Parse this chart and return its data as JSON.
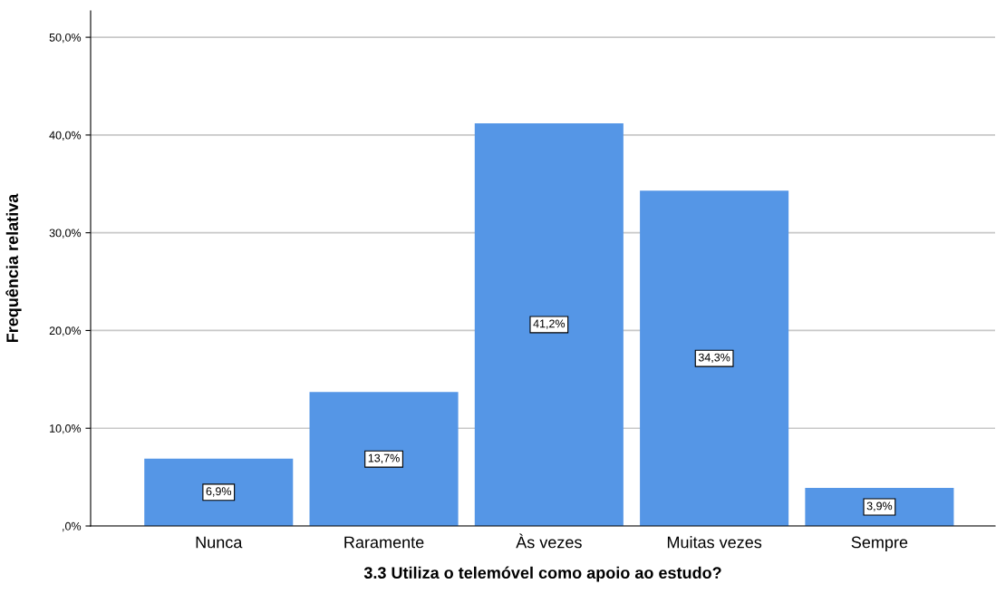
{
  "chart_data": {
    "type": "bar",
    "xlabel": "3.3 Utiliza o telemóvel como apoio ao estudo?",
    "ylabel": "Frequência relativa",
    "categories": [
      "Nunca",
      "Raramente",
      "Às vezes",
      "Muitas vezes",
      "Sempre"
    ],
    "values": [
      6.9,
      13.7,
      41.2,
      34.3,
      3.9
    ],
    "value_labels": [
      "6,9%",
      "13,7%",
      "41,2%",
      "34,3%",
      "3,9%"
    ],
    "color": "#5596e6",
    "ylim": [
      0,
      52.7
    ],
    "yticks": [
      {
        "value": 0,
        "label": ",0%"
      },
      {
        "value": 10,
        "label": "10,0%"
      },
      {
        "value": 20,
        "label": "20,0%"
      },
      {
        "value": 30,
        "label": "30,0%"
      },
      {
        "value": 40,
        "label": "40,0%"
      },
      {
        "value": 50,
        "label": "50,0%"
      }
    ],
    "grid": "y"
  }
}
